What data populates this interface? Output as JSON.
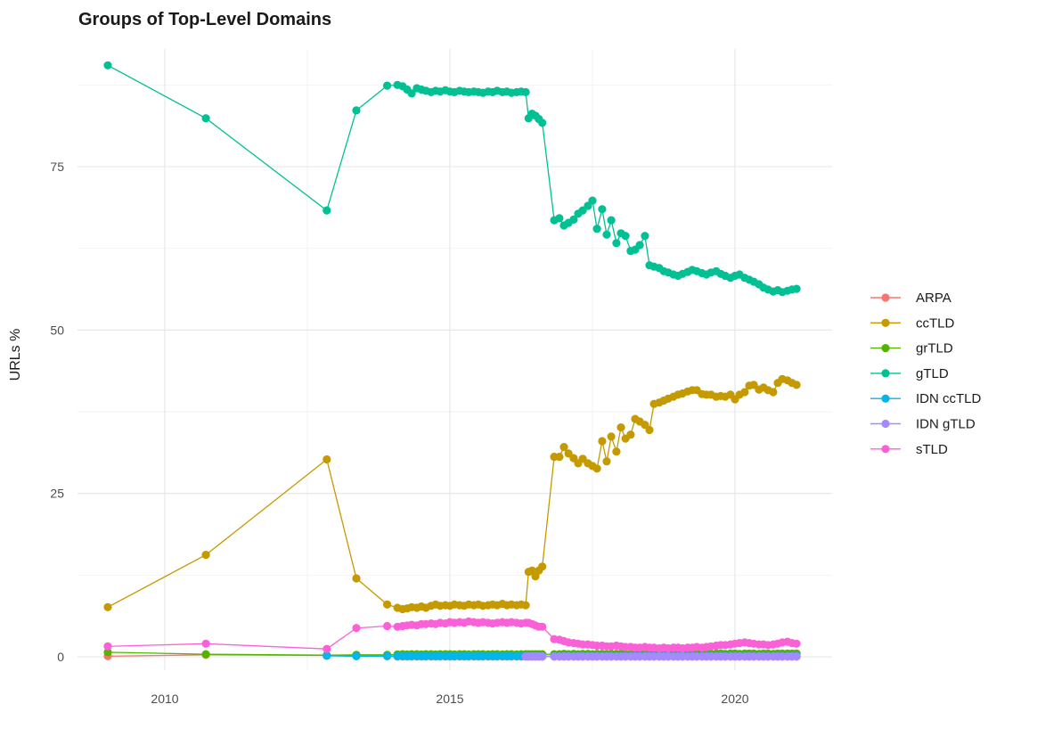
{
  "chart_data": {
    "type": "line",
    "title": "Groups of Top-Level Domains",
    "xlabel": "",
    "ylabel": "URLs %",
    "grid": true,
    "legend_position": "right",
    "x_ticks": [
      "2010",
      "2015",
      "2020"
    ],
    "x_tick_values": [
      2010,
      2015,
      2020
    ],
    "x_minor": [
      2012.5,
      2017.5
    ],
    "y_ticks": [
      "0",
      "25",
      "50",
      "75"
    ],
    "y_tick_values": [
      0,
      25,
      50,
      75
    ],
    "y_minor": [
      12.5,
      37.5,
      62.5,
      87.5
    ],
    "xlim": [
      2008.5,
      2021.75
    ],
    "ylim": [
      -2,
      93
    ],
    "x": [
      2009.0,
      2010.72,
      2012.84,
      2013.36,
      2013.9,
      2014.08,
      2014.17,
      2014.25,
      2014.33,
      2014.42,
      2014.5,
      2014.58,
      2014.67,
      2014.75,
      2014.83,
      2014.92,
      2015.0,
      2015.08,
      2015.17,
      2015.25,
      2015.33,
      2015.42,
      2015.5,
      2015.58,
      2015.67,
      2015.75,
      2015.83,
      2015.92,
      2016.0,
      2016.08,
      2016.17,
      2016.25,
      2016.33,
      2016.38,
      2016.44,
      2016.5,
      2016.56,
      2016.62,
      2016.83,
      2016.92,
      2017.0,
      2017.08,
      2017.17,
      2017.25,
      2017.33,
      2017.42,
      2017.5,
      2017.58,
      2017.67,
      2017.75,
      2017.83,
      2017.92,
      2018.0,
      2018.08,
      2018.17,
      2018.25,
      2018.33,
      2018.42,
      2018.5,
      2018.58,
      2018.67,
      2018.75,
      2018.83,
      2018.92,
      2019.0,
      2019.08,
      2019.17,
      2019.25,
      2019.33,
      2019.42,
      2019.5,
      2019.58,
      2019.67,
      2019.75,
      2019.83,
      2019.92,
      2020.0,
      2020.08,
      2020.17,
      2020.25,
      2020.33,
      2020.42,
      2020.5,
      2020.58,
      2020.67,
      2020.75,
      2020.83,
      2020.92,
      2021.0,
      2021.08
    ],
    "series": [
      {
        "name": "ARPA",
        "color": "#F8766D",
        "values": [
          0.1,
          0.3,
          0.2,
          0.1,
          0.1,
          0.05,
          0.05,
          0.05,
          0.05,
          0.05,
          0.05,
          0.05,
          0.05,
          0.05,
          0.05,
          0.05,
          0.05,
          0.05,
          0.05,
          0.05,
          0.05,
          0.05,
          0.05,
          0.05,
          0.05,
          0.05,
          0.05,
          0.05,
          0.05,
          0.05,
          0.05,
          0.05,
          0.05,
          0.05,
          0.05,
          0.05,
          0.05,
          0.05,
          0.05,
          0.05,
          0.05,
          0.05,
          0.05,
          0.05,
          0.05,
          0.05,
          0.05,
          0.05,
          0.05,
          0.05,
          0.05,
          0.05,
          0.05,
          0.05,
          0.05,
          0.05,
          0.05,
          0.05,
          0.05,
          0.05,
          0.05,
          0.05,
          0.05,
          0.05,
          0.05,
          0.05,
          0.05,
          0.05,
          0.05,
          0.05,
          0.05,
          0.05,
          0.05,
          0.05,
          0.05,
          0.05,
          0.05,
          0.05,
          0.05,
          0.05,
          0.05,
          0.05,
          0.05,
          0.05,
          0.05,
          0.05,
          0.05,
          0.05,
          0.05,
          0.05
        ]
      },
      {
        "name": "ccTLD",
        "color": "#C49A00",
        "values": [
          7.6,
          15.6,
          30.2,
          12.0,
          8.0,
          7.5,
          7.3,
          7.4,
          7.6,
          7.5,
          7.7,
          7.5,
          7.8,
          8.0,
          7.8,
          7.9,
          7.8,
          8.0,
          7.9,
          7.8,
          8.0,
          7.9,
          8.0,
          7.8,
          7.9,
          8.0,
          7.9,
          8.1,
          7.9,
          8.0,
          7.9,
          8.0,
          7.9,
          13.0,
          13.2,
          12.3,
          13.2,
          13.8,
          30.6,
          30.6,
          32.1,
          31.1,
          30.4,
          29.6,
          30.3,
          29.6,
          29.2,
          28.8,
          33.0,
          29.9,
          33.7,
          31.4,
          35.1,
          33.4,
          34.0,
          36.4,
          36.0,
          35.5,
          34.7,
          38.7,
          38.9,
          39.2,
          39.5,
          39.8,
          40.1,
          40.3,
          40.6,
          40.8,
          40.8,
          40.2,
          40.1,
          40.1,
          39.8,
          39.9,
          39.8,
          40.1,
          39.4,
          40.1,
          40.5,
          41.5,
          41.6,
          40.9,
          41.2,
          40.8,
          40.5,
          41.9,
          42.5,
          42.3,
          41.9,
          41.6
        ]
      },
      {
        "name": "grTLD",
        "color": "#53B400",
        "values": [
          0.7,
          0.4,
          0.25,
          0.3,
          0.3,
          0.35,
          0.4,
          0.35,
          0.4,
          0.4,
          0.35,
          0.4,
          0.4,
          0.35,
          0.4,
          0.4,
          0.4,
          0.35,
          0.4,
          0.4,
          0.35,
          0.4,
          0.4,
          0.4,
          0.35,
          0.4,
          0.4,
          0.35,
          0.4,
          0.4,
          0.35,
          0.4,
          0.4,
          0.4,
          0.4,
          0.4,
          0.4,
          0.4,
          0.4,
          0.4,
          0.45,
          0.4,
          0.45,
          0.4,
          0.45,
          0.45,
          0.4,
          0.45,
          0.45,
          0.4,
          0.45,
          0.45,
          0.45,
          0.4,
          0.45,
          0.45,
          0.45,
          0.5,
          0.45,
          0.45,
          0.5,
          0.45,
          0.45,
          0.5,
          0.45,
          0.5,
          0.45,
          0.5,
          0.5,
          0.45,
          0.5,
          0.45,
          0.5,
          0.5,
          0.45,
          0.5,
          0.5,
          0.45,
          0.5,
          0.5,
          0.5,
          0.45,
          0.5,
          0.5,
          0.45,
          0.5,
          0.5,
          0.5,
          0.5,
          0.5
        ]
      },
      {
        "name": "gTLD",
        "color": "#00C094",
        "values": [
          90.5,
          82.4,
          68.3,
          83.6,
          87.4,
          87.5,
          87.3,
          86.8,
          86.2,
          87.0,
          86.8,
          86.6,
          86.4,
          86.6,
          86.5,
          86.7,
          86.5,
          86.4,
          86.6,
          86.5,
          86.4,
          86.5,
          86.4,
          86.3,
          86.5,
          86.4,
          86.6,
          86.4,
          86.5,
          86.3,
          86.4,
          86.5,
          86.4,
          82.4,
          83.1,
          82.8,
          82.3,
          81.7,
          66.8,
          67.1,
          66.0,
          66.4,
          66.9,
          67.8,
          68.3,
          69.0,
          69.8,
          65.5,
          68.5,
          64.6,
          66.8,
          63.3,
          64.8,
          64.4,
          62.1,
          62.3,
          63.0,
          64.4,
          59.9,
          59.7,
          59.5,
          59.0,
          58.8,
          58.5,
          58.3,
          58.6,
          58.9,
          59.2,
          59.0,
          58.7,
          58.5,
          58.8,
          59.0,
          58.6,
          58.3,
          58.0,
          58.3,
          58.5,
          58.0,
          57.7,
          57.4,
          57.0,
          56.5,
          56.2,
          55.9,
          56.1,
          55.8,
          56.0,
          56.2,
          56.3
        ]
      },
      {
        "name": "IDN ccTLD",
        "color": "#00B6EB",
        "values": [
          null,
          null,
          0.15,
          0.1,
          0.1,
          0.1,
          0.1,
          0.1,
          0.1,
          0.1,
          0.1,
          0.1,
          0.1,
          0.1,
          0.1,
          0.1,
          0.1,
          0.1,
          0.1,
          0.1,
          0.1,
          0.1,
          0.1,
          0.1,
          0.1,
          0.1,
          0.1,
          0.1,
          0.1,
          0.1,
          0.1,
          0.1,
          0.1,
          0.1,
          0.1,
          0.1,
          0.1,
          0.1,
          0.1,
          0.1,
          0.1,
          0.1,
          0.1,
          0.1,
          0.1,
          0.1,
          0.1,
          0.1,
          0.1,
          0.1,
          0.1,
          0.1,
          0.1,
          0.1,
          0.1,
          0.1,
          0.1,
          0.1,
          0.1,
          0.1,
          0.1,
          0.1,
          0.1,
          0.1,
          0.1,
          0.1,
          0.1,
          0.1,
          0.1,
          0.1,
          0.1,
          0.1,
          0.1,
          0.1,
          0.1,
          0.1,
          0.1,
          0.1,
          0.1,
          0.1,
          0.1,
          0.1,
          0.1,
          0.1,
          0.1,
          0.1,
          0.1,
          0.1,
          0.15,
          0.15
        ]
      },
      {
        "name": "IDN gTLD",
        "color": "#A58AFF",
        "values": [
          null,
          null,
          null,
          null,
          null,
          null,
          null,
          null,
          null,
          null,
          null,
          null,
          null,
          null,
          null,
          null,
          null,
          null,
          null,
          null,
          null,
          null,
          null,
          null,
          null,
          null,
          null,
          null,
          null,
          null,
          null,
          null,
          0.05,
          0.05,
          0.05,
          0.05,
          0.05,
          0.05,
          0.05,
          0.05,
          0.05,
          0.05,
          0.05,
          0.05,
          0.05,
          0.05,
          0.05,
          0.05,
          0.05,
          0.05,
          0.05,
          0.05,
          0.05,
          0.05,
          0.05,
          0.05,
          0.05,
          0.05,
          0.05,
          0.05,
          0.05,
          0.05,
          0.05,
          0.05,
          0.05,
          0.05,
          0.05,
          0.05,
          0.05,
          0.05,
          0.05,
          0.05,
          0.05,
          0.05,
          0.05,
          0.05,
          0.05,
          0.05,
          0.05,
          0.05,
          0.05,
          0.05,
          0.05,
          0.05,
          0.05,
          0.05,
          0.05,
          0.05,
          0.05,
          0.05
        ]
      },
      {
        "name": "sTLD",
        "color": "#FB61D7",
        "values": [
          1.6,
          2.0,
          1.2,
          4.4,
          4.7,
          4.6,
          4.7,
          4.8,
          4.9,
          4.8,
          5.0,
          5.0,
          5.1,
          5.0,
          5.2,
          5.1,
          5.3,
          5.2,
          5.3,
          5.2,
          5.4,
          5.3,
          5.2,
          5.3,
          5.2,
          5.1,
          5.2,
          5.3,
          5.2,
          5.3,
          5.2,
          5.1,
          5.2,
          5.2,
          5.0,
          4.8,
          4.6,
          4.6,
          2.7,
          2.6,
          2.4,
          2.2,
          2.1,
          2.0,
          1.9,
          1.9,
          1.8,
          1.7,
          1.7,
          1.6,
          1.6,
          1.7,
          1.6,
          1.5,
          1.5,
          1.4,
          1.4,
          1.5,
          1.4,
          1.4,
          1.3,
          1.4,
          1.3,
          1.4,
          1.4,
          1.3,
          1.4,
          1.4,
          1.5,
          1.4,
          1.5,
          1.6,
          1.7,
          1.8,
          1.8,
          1.9,
          2.0,
          2.1,
          2.2,
          2.1,
          2.0,
          1.9,
          1.9,
          1.8,
          1.9,
          2.0,
          2.2,
          2.3,
          2.1,
          2.0
        ]
      }
    ]
  },
  "colors": {
    "background": "#ffffff",
    "grid_major": "#e5e5e5",
    "grid_minor": "#f2f2f2",
    "tick_label": "#4d4d4d",
    "title": "#1a1a1a",
    "axis_title": "#1a1a1a",
    "legend_label": "#1a1a1a"
  }
}
